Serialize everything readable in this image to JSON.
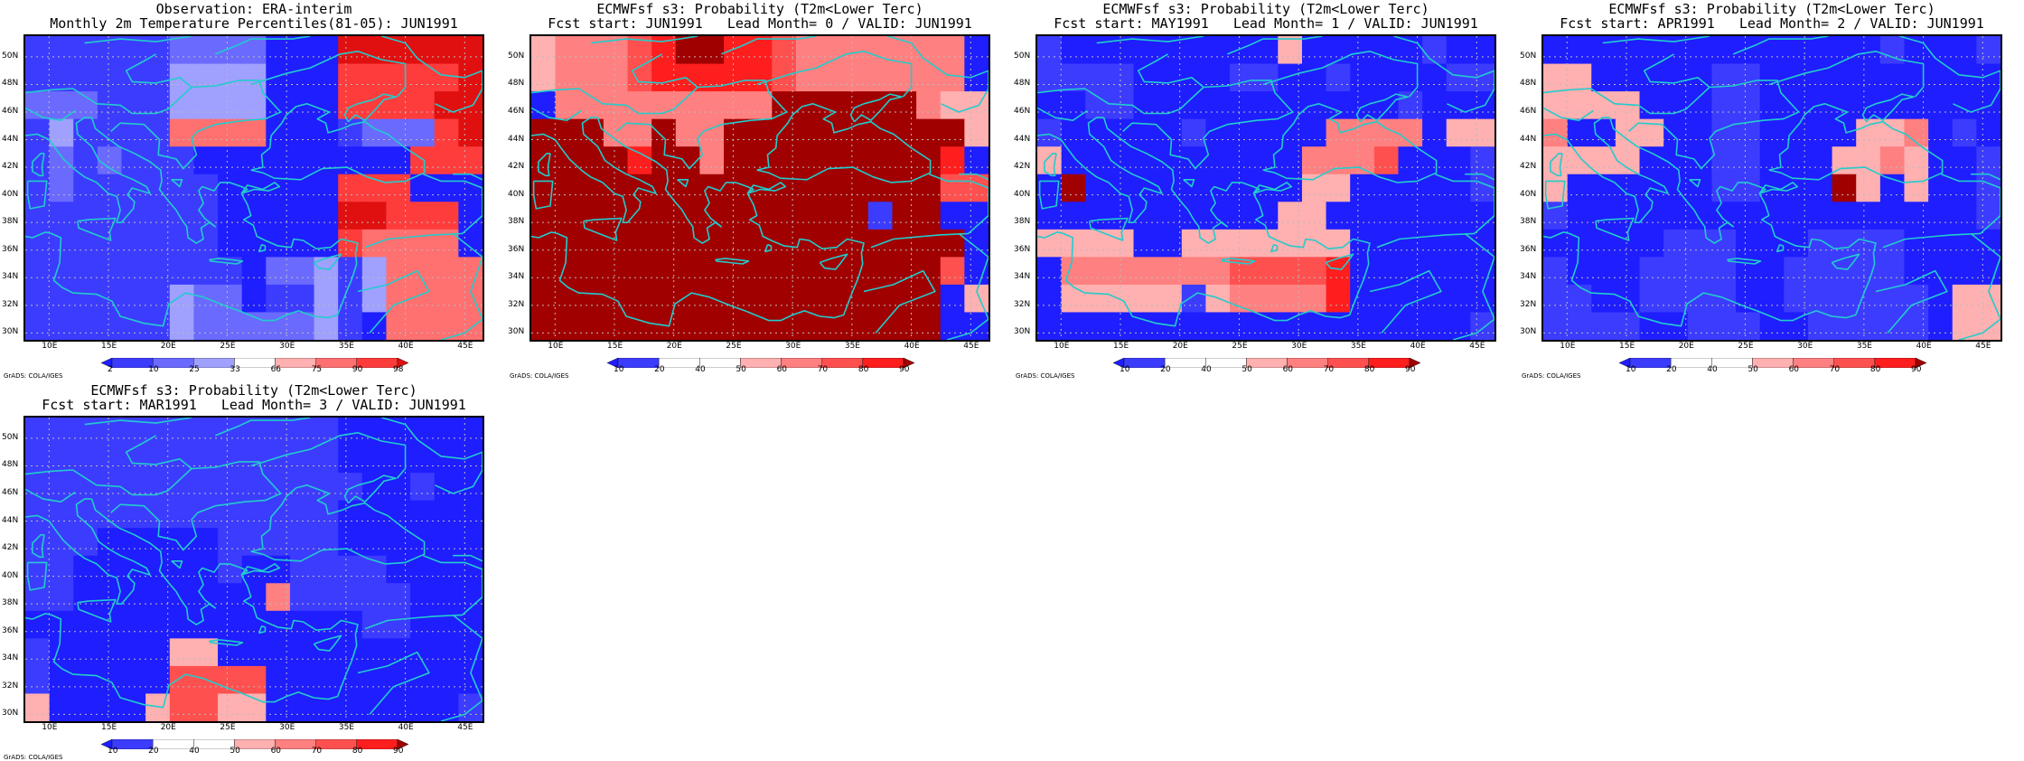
{
  "credit": "GrADS: COLA/IGES",
  "lat_ticks": [
    "30N",
    "32N",
    "34N",
    "36N",
    "38N",
    "40N",
    "42N",
    "44N",
    "46N",
    "48N",
    "50N"
  ],
  "lon_ticks": [
    "10E",
    "15E",
    "20E",
    "25E",
    "30E",
    "35E",
    "40E",
    "45E"
  ],
  "colors": {
    "obs": [
      "#1e1eff",
      "#3c3cff",
      "#6a6aff",
      "#a0a0ff",
      "#ffffff",
      "#ffb0b0",
      "#ff7070",
      "#ff3c3c",
      "#e01010"
    ],
    "prob": [
      "#1e1eff",
      "#3c3cff",
      "#ffffff",
      "#ffffff",
      "#ffb0b0",
      "#ff8080",
      "#ff5050",
      "#ff1e1e",
      "#a00000"
    ],
    "coast": "#22cccc",
    "grid": "#bbbbbb"
  },
  "obs_legend": [
    "2",
    "10",
    "25",
    "33",
    "66",
    "75",
    "90",
    "98"
  ],
  "prob_legend": [
    "10",
    "20",
    "40",
    "50",
    "60",
    "70",
    "80",
    "90"
  ],
  "panels": [
    {
      "title1": "Observation: ERA-interim",
      "title2": "Monthly 2m Temperature Percentiles(81-05): JUN1991",
      "legend": "obs",
      "classes": [
        "1111112222000888888",
        "1111113333000777778",
        "2221113333000777788",
        "1311116666000122278",
        "1212111000000000777",
        "1211111100000777000",
        "1111111100000887770",
        "1111111100000766660",
        "1111111110223136666",
        "1111113220113136666",
        "1111113222223106666"
      ]
    },
    {
      "title1": "ECMWFsf s3: Probability (T2m<Lower Terc)",
      "title2": "Fcst start: JUN1991   Lead Month= 0 / VALID: JUN1991",
      "legend": "prob",
      "classes": [
        "4555678877655555550",
        "4555677777655555550",
        "0555555555888888544",
        "8885585588888888884",
        "8888788588888888870",
        "8888888888888888866",
        "8888888888888818800",
        "8888888888888888880",
        "8888888888888888860",
        "8888888888888888804",
        "8888888888888888800"
      ]
    },
    {
      "title1": "ECMWFsf s3: Probability (T2m<Lower Terc)",
      "title2": "Fcst start: MAY1991   Lead Month= 1 / VALID: JUN1991",
      "legend": "prob",
      "classes": [
        "1000000000400000100",
        "1111000011001000011",
        "0011000000000001000",
        "1000001000005555044",
        "4000000000055560001",
        "0800000000044000001",
        "0000000000440000000",
        "4444004444444000000",
        "0555555566667000000",
        "0444441455557000000",
        "0000000000000000001"
      ]
    },
    {
      "title1": "ECMWFsf s3: Probability (T2m<Lower Terc)",
      "title2": "Fcst start: APR1991   Lead Month= 2 / VALID: JUN1991",
      "legend": "prob",
      "classes": [
        "0000000000000010001",
        "4400000110000000000",
        "4444000110000000000",
        "5004400110000445010",
        "4444000110004454001",
        "4000000110008404001",
        "1000000000000000001",
        "0000011100011110000",
        "1000111100111110000",
        "1100111100111111044",
        "1111001110011111044"
      ]
    },
    {
      "title1": "ECMWFsf s3: Probability (T2m<Lower Terc)",
      "title2": "Fcst start: MAR1991   Lead Month= 3 / VALID: JUN1991",
      "legend": "prob",
      "classes": [
        "1111111111111000000",
        "1111111111111000000",
        "1111111111111100100",
        "1111111111111000000",
        "1110000011111000000",
        "1100000010011110000",
        "1100000000511111000",
        "0000000000000011000",
        "1000004400000000000",
        "1000006666000000000",
        "4000046644000000001"
      ]
    }
  ]
}
